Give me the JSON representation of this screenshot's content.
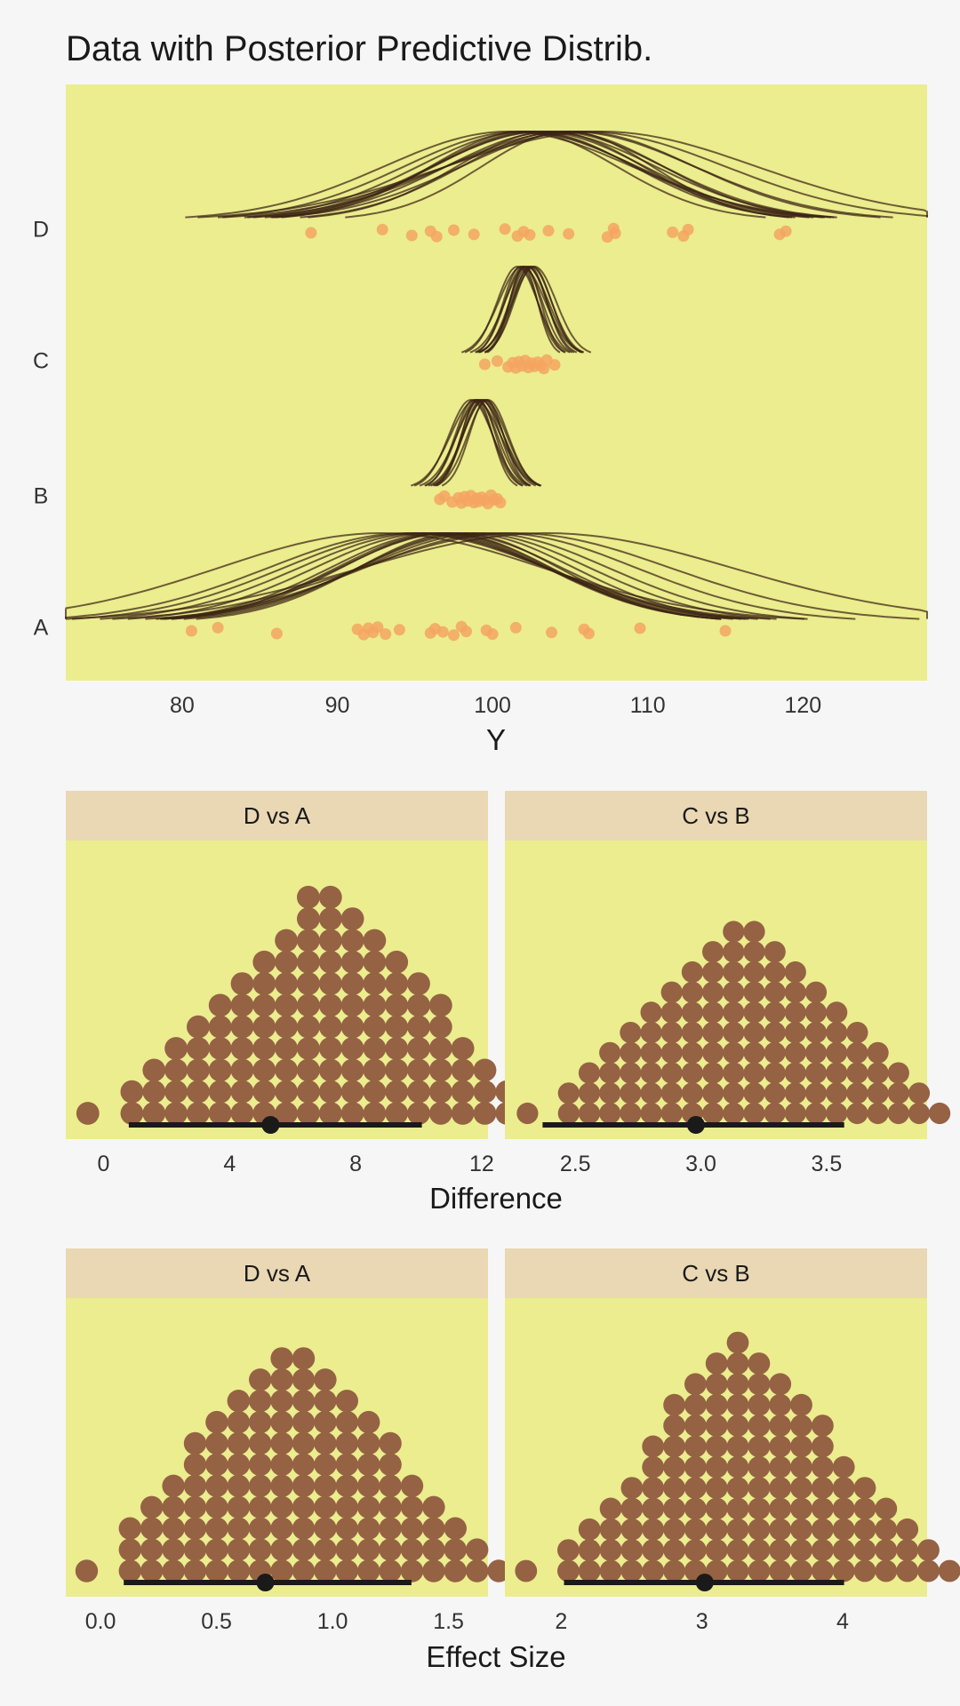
{
  "chart_data": [
    {
      "type": "scatter",
      "title": "Data with Posterior Predictive Distrib.",
      "xlabel": "Y",
      "ylabel": "",
      "xlim": [
        72.5,
        128
      ],
      "xticks": [
        80,
        90,
        100,
        110,
        120
      ],
      "categories": [
        "A",
        "B",
        "C",
        "D"
      ],
      "colors": {
        "panel": "#ebed8e",
        "points": "#f4a460",
        "curves": "#3b2414"
      },
      "groups": [
        {
          "name": "A",
          "points": [
            80.6,
            82.3,
            86.1,
            91.3,
            91.7,
            92.0,
            92.3,
            92.6,
            93.1,
            94.0,
            96.0,
            96.3,
            96.8,
            97.5,
            98.0,
            98.3,
            99.6,
            100.0,
            101.5,
            103.8,
            105.9,
            106.2,
            109.5,
            115.0
          ],
          "curves": [
            {
              "mean": 92.8,
              "sd": 10.5
            },
            {
              "mean": 94.5,
              "sd": 9.0
            },
            {
              "mean": 95.5,
              "sd": 8.0
            },
            {
              "mean": 96.0,
              "sd": 7.5
            },
            {
              "mean": 96.5,
              "sd": 7.0
            },
            {
              "mean": 97.0,
              "sd": 6.8
            },
            {
              "mean": 97.3,
              "sd": 7.2
            },
            {
              "mean": 97.8,
              "sd": 6.5
            },
            {
              "mean": 96.8,
              "sd": 6.9
            },
            {
              "mean": 98.3,
              "sd": 7.0
            },
            {
              "mean": 98.8,
              "sd": 7.5
            },
            {
              "mean": 99.5,
              "sd": 8.0
            },
            {
              "mean": 100.5,
              "sd": 8.8
            },
            {
              "mean": 101.5,
              "sd": 10.0
            },
            {
              "mean": 103.5,
              "sd": 12.0
            },
            {
              "mean": 95.0,
              "sd": 8.5
            }
          ]
        },
        {
          "name": "B",
          "points": [
            96.6,
            96.9,
            97.4,
            97.8,
            98.0,
            98.2,
            98.4,
            98.6,
            98.8,
            99.0,
            99.1,
            99.3,
            99.5,
            99.7,
            99.9,
            100.1,
            100.3,
            100.5
          ],
          "curves": [
            {
              "mean": 98.6,
              "sd": 1.4
            },
            {
              "mean": 98.8,
              "sd": 1.2
            },
            {
              "mean": 99.0,
              "sd": 1.3
            },
            {
              "mean": 99.1,
              "sd": 1.1
            },
            {
              "mean": 99.2,
              "sd": 1.5
            },
            {
              "mean": 99.3,
              "sd": 1.2
            },
            {
              "mean": 99.4,
              "sd": 1.3
            },
            {
              "mean": 99.5,
              "sd": 1.4
            },
            {
              "mean": 99.0,
              "sd": 1.0
            },
            {
              "mean": 99.6,
              "sd": 1.1
            },
            {
              "mean": 99.7,
              "sd": 1.3
            },
            {
              "mean": 98.9,
              "sd": 1.6
            }
          ]
        },
        {
          "name": "C",
          "points": [
            99.5,
            100.3,
            101.0,
            101.3,
            101.5,
            101.7,
            101.9,
            102.1,
            102.3,
            102.5,
            102.7,
            102.9,
            103.1,
            103.3,
            103.5,
            104.0
          ],
          "curves": [
            {
              "mean": 101.6,
              "sd": 1.3
            },
            {
              "mean": 101.8,
              "sd": 1.1
            },
            {
              "mean": 102.0,
              "sd": 1.2
            },
            {
              "mean": 102.1,
              "sd": 1.0
            },
            {
              "mean": 102.2,
              "sd": 1.4
            },
            {
              "mean": 102.3,
              "sd": 1.2
            },
            {
              "mean": 102.4,
              "sd": 1.1
            },
            {
              "mean": 102.5,
              "sd": 1.3
            },
            {
              "mean": 101.9,
              "sd": 1.5
            },
            {
              "mean": 102.6,
              "sd": 1.2
            },
            {
              "mean": 102.0,
              "sd": 0.9
            },
            {
              "mean": 102.7,
              "sd": 1.4
            }
          ]
        },
        {
          "name": "D",
          "points": [
            88.3,
            92.9,
            94.8,
            96.0,
            96.4,
            97.5,
            98.8,
            100.8,
            101.6,
            102.0,
            102.4,
            103.6,
            104.9,
            107.4,
            107.8,
            107.9,
            111.6,
            112.3,
            112.6,
            118.5,
            118.9
          ],
          "curves": [
            {
              "mean": 101.0,
              "sd": 8.0
            },
            {
              "mean": 101.8,
              "sd": 7.5
            },
            {
              "mean": 102.2,
              "sd": 7.0
            },
            {
              "mean": 102.6,
              "sd": 6.5
            },
            {
              "mean": 103.0,
              "sd": 6.8
            },
            {
              "mean": 103.3,
              "sd": 7.2
            },
            {
              "mean": 103.7,
              "sd": 6.0
            },
            {
              "mean": 104.0,
              "sd": 7.0
            },
            {
              "mean": 104.5,
              "sd": 6.5
            },
            {
              "mean": 105.0,
              "sd": 8.0
            },
            {
              "mean": 105.5,
              "sd": 7.5
            },
            {
              "mean": 106.0,
              "sd": 9.0
            },
            {
              "mean": 107.0,
              "sd": 10.0
            },
            {
              "mean": 102.0,
              "sd": 6.0
            },
            {
              "mean": 104.8,
              "sd": 5.5
            }
          ]
        }
      ]
    },
    {
      "type": "dotplot",
      "xlabel": "Difference",
      "facets": [
        {
          "label": "D vs A",
          "xlim": [
            -1.2,
            12.2
          ],
          "xticks": [
            0,
            4,
            8,
            12
          ],
          "bin_start": -0.5,
          "bin_width": 0.7,
          "counts": [
            1,
            0,
            2,
            3,
            4,
            5,
            6,
            7,
            8,
            9,
            11,
            11,
            10,
            9,
            8,
            7,
            6,
            4,
            3,
            2,
            1,
            0,
            1
          ],
          "interval": {
            "low": 0.8,
            "high": 10.1,
            "point": 5.3
          }
        },
        {
          "label": "C vs B",
          "xlim": [
            2.22,
            3.9
          ],
          "xticks": [
            2.5,
            3.0,
            3.5
          ],
          "bin_start": 2.31,
          "bin_width": 0.082,
          "counts": [
            1,
            0,
            2,
            3,
            4,
            5,
            6,
            7,
            8,
            9,
            10,
            10,
            9,
            8,
            7,
            6,
            5,
            4,
            3,
            2,
            1,
            0,
            1
          ],
          "interval": {
            "low": 2.37,
            "high": 3.57,
            "point": 2.98
          }
        }
      ],
      "colors": {
        "panel": "#ebed8e",
        "strip": "#ead8b4",
        "dots": "#956244",
        "interval": "#1a1a1a"
      }
    },
    {
      "type": "dotplot",
      "xlabel": "Effect Size",
      "facets": [
        {
          "label": "D vs A",
          "xlim": [
            -0.15,
            1.67
          ],
          "xticks": [
            0.0,
            0.5,
            1.0,
            1.5
          ],
          "xtick_labels": [
            "0.0",
            "0.5",
            "1.0",
            "1.5"
          ],
          "bin_start": -0.06,
          "bin_width": 0.0935,
          "counts": [
            1,
            0,
            3,
            4,
            5,
            7,
            8,
            9,
            10,
            11,
            11,
            10,
            9,
            8,
            7,
            5,
            4,
            3,
            2,
            1,
            0,
            1
          ],
          "interval": {
            "low": 0.1,
            "high": 1.34,
            "point": 0.71
          }
        },
        {
          "label": "C vs B",
          "xlim": [
            1.6,
            4.6
          ],
          "xticks": [
            2,
            3,
            4
          ],
          "bin_start": 1.75,
          "bin_width": 0.1505,
          "counts": [
            1,
            0,
            2,
            3,
            4,
            5,
            7,
            9,
            10,
            11,
            12,
            11,
            10,
            9,
            8,
            6,
            5,
            4,
            3,
            2,
            1,
            0,
            1
          ],
          "interval": {
            "low": 2.02,
            "high": 4.01,
            "point": 3.02
          }
        }
      ],
      "colors": {
        "panel": "#ebed8e",
        "strip": "#ead8b4",
        "dots": "#956244",
        "interval": "#1a1a1a"
      }
    }
  ]
}
